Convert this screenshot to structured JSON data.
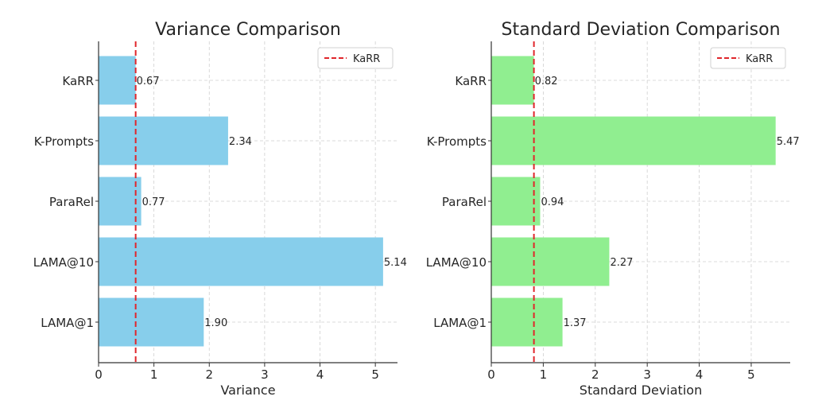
{
  "chart_data": [
    {
      "type": "bar",
      "orientation": "horizontal",
      "title": "Variance Comparison",
      "xlabel": "Variance",
      "ylabel": "",
      "categories": [
        "KaRR",
        "K-Prompts",
        "ParaRel",
        "LAMA@10",
        "LAMA@1"
      ],
      "values": [
        0.67,
        2.34,
        0.77,
        5.14,
        1.9
      ],
      "data_labels": [
        "0.67",
        "2.34",
        "0.77",
        "5.14",
        "1.90"
      ],
      "xlim": [
        0,
        5.4
      ],
      "xticks": [
        "0",
        "1",
        "2",
        "3",
        "4",
        "5"
      ],
      "bar_color": "#87ceeb",
      "reference_line": {
        "name": "KaRR",
        "value": 0.67,
        "color": "#e0262b",
        "style": "dashed"
      },
      "legend": {
        "placement": "top-right",
        "entries": [
          "KaRR"
        ]
      },
      "grid": true
    },
    {
      "type": "bar",
      "orientation": "horizontal",
      "title": "Standard Deviation Comparison",
      "xlabel": "Standard Deviation",
      "ylabel": "",
      "categories": [
        "KaRR",
        "K-Prompts",
        "ParaRel",
        "LAMA@10",
        "LAMA@1"
      ],
      "values": [
        0.82,
        5.47,
        0.94,
        2.27,
        1.37
      ],
      "data_labels": [
        "0.82",
        "5.47",
        "0.94",
        "2.27",
        "1.37"
      ],
      "xlim": [
        0,
        5.75
      ],
      "xticks": [
        "0",
        "1",
        "2",
        "3",
        "4",
        "5"
      ],
      "bar_color": "#90ee90",
      "reference_line": {
        "name": "KaRR",
        "value": 0.82,
        "color": "#e0262b",
        "style": "dashed"
      },
      "legend": {
        "placement": "top-right",
        "entries": [
          "KaRR"
        ]
      },
      "grid": true
    }
  ]
}
